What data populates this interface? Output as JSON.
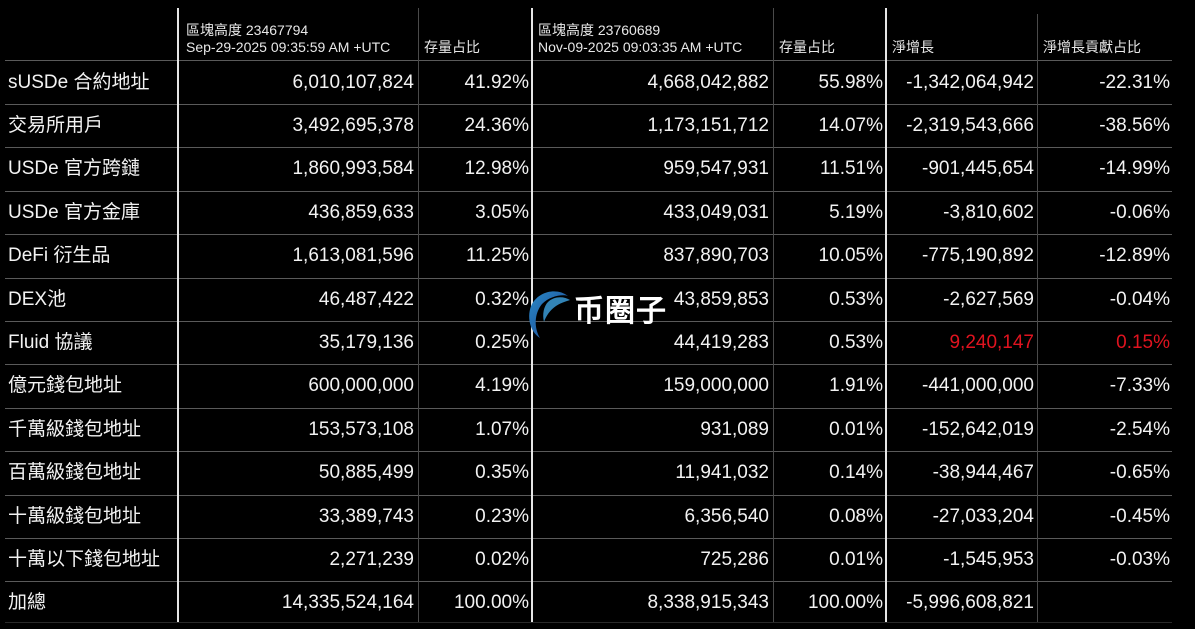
{
  "header": {
    "row_label": "",
    "col1": {
      "line1": "區塊高度 23467794",
      "line2": "Sep-29-2025 09:35:59 AM +UTC"
    },
    "col2": "存量占比",
    "col3": {
      "line1": "區塊高度 23760689",
      "line2": "Nov-09-2025 09:03:35 AM +UTC"
    },
    "col4": "存量占比",
    "col5": "淨增長",
    "col6": "淨增長貢獻占比"
  },
  "rows": [
    {
      "label": "sUSDe 合約地址",
      "v1": "6,010,107,824",
      "p1": "41.92%",
      "v2": "4,668,042,882",
      "p2": "55.98%",
      "net": "-1,342,064,942",
      "share": "-22.31%"
    },
    {
      "label": "交易所用戶",
      "v1": "3,492,695,378",
      "p1": "24.36%",
      "v2": "1,173,151,712",
      "p2": "14.07%",
      "net": "-2,319,543,666",
      "share": "-38.56%"
    },
    {
      "label": "USDe 官方跨鏈",
      "v1": "1,860,993,584",
      "p1": "12.98%",
      "v2": "959,547,931",
      "p2": "11.51%",
      "net": "-901,445,654",
      "share": "-14.99%"
    },
    {
      "label": "USDe 官方金庫",
      "v1": "436,859,633",
      "p1": "3.05%",
      "v2": "433,049,031",
      "p2": "5.19%",
      "net": "-3,810,602",
      "share": "-0.06%"
    },
    {
      "label": "DeFi 衍生品",
      "v1": "1,613,081,596",
      "p1": "11.25%",
      "v2": "837,890,703",
      "p2": "10.05%",
      "net": "-775,190,892",
      "share": "-12.89%"
    },
    {
      "label": "DEX池",
      "v1": "46,487,422",
      "p1": "0.32%",
      "v2": "43,859,853",
      "p2": "0.53%",
      "net": "-2,627,569",
      "share": "-0.04%"
    },
    {
      "label": "Fluid 協議",
      "v1": "35,179,136",
      "p1": "0.25%",
      "v2": "44,419,283",
      "p2": "0.53%",
      "net": "9,240,147",
      "share": "0.15%"
    },
    {
      "label": "億元錢包地址",
      "v1": "600,000,000",
      "p1": "4.19%",
      "v2": "159,000,000",
      "p2": "1.91%",
      "net": "-441,000,000",
      "share": "-7.33%"
    },
    {
      "label": "千萬級錢包地址",
      "v1": "153,573,108",
      "p1": "1.07%",
      "v2": "931,089",
      "p2": "0.01%",
      "net": "-152,642,019",
      "share": "-2.54%"
    },
    {
      "label": "百萬級錢包地址",
      "v1": "50,885,499",
      "p1": "0.35%",
      "v2": "11,941,032",
      "p2": "0.14%",
      "net": "-38,944,467",
      "share": "-0.65%"
    },
    {
      "label": "十萬級錢包地址",
      "v1": "33,389,743",
      "p1": "0.23%",
      "v2": "6,356,540",
      "p2": "0.08%",
      "net": "-27,033,204",
      "share": "-0.45%"
    },
    {
      "label": "十萬以下錢包地址",
      "v1": "2,271,239",
      "p1": "0.02%",
      "v2": "725,286",
      "p2": "0.01%",
      "net": "-1,545,953",
      "share": "-0.03%"
    },
    {
      "label": "加總",
      "v1": "14,335,524,164",
      "p1": "100.00%",
      "v2": "8,338,915,343",
      "p2": "100.00%",
      "net": "-5,996,608,821",
      "share": ""
    }
  ],
  "highlight_row_index": 6,
  "colors": {
    "background": "#000000",
    "text": "#f2f2f2",
    "positive_growth": "#e0131f",
    "thick_divider": "#e6e6e6",
    "thin_divider": "#4a4a4a"
  },
  "watermark": {
    "text": "币圈子",
    "icon": "e-logo-icon"
  }
}
